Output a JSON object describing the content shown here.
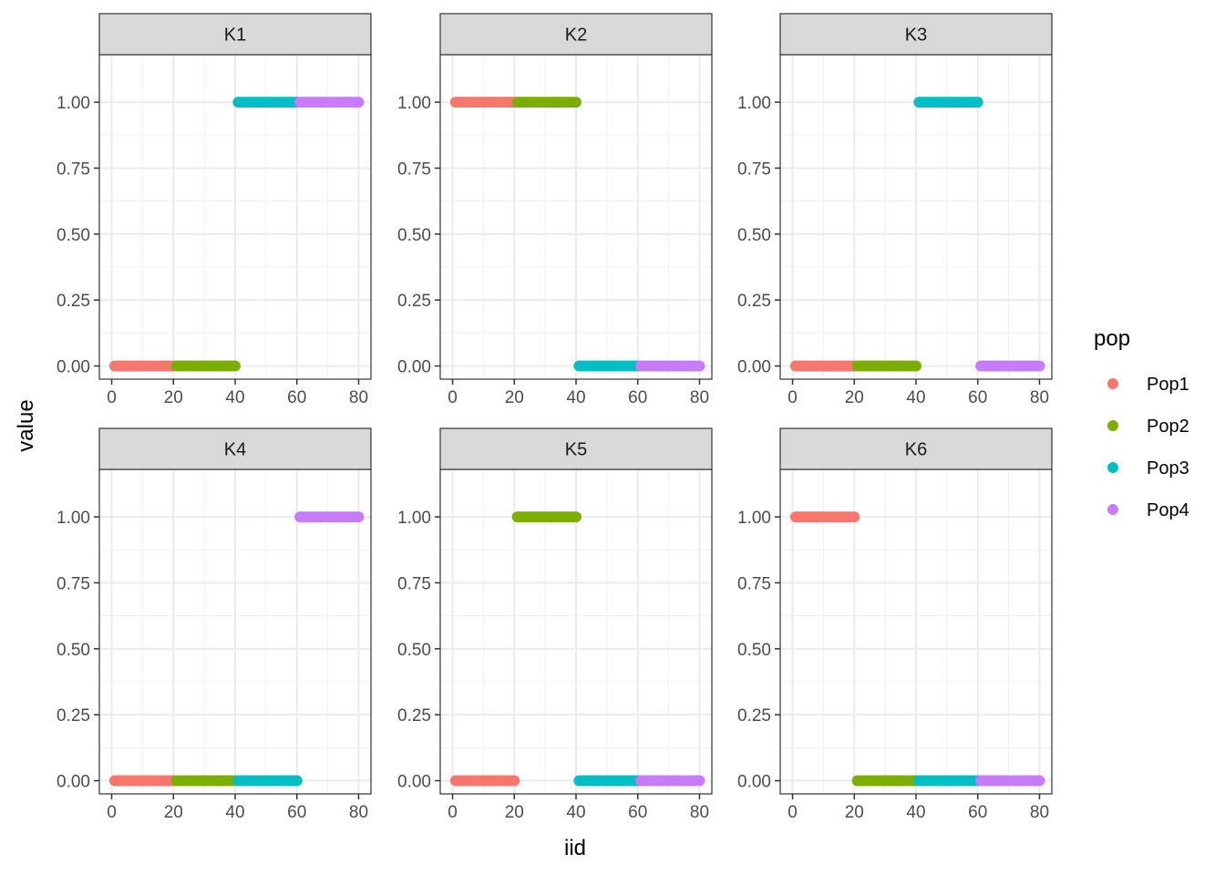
{
  "chart_data": {
    "type": "scatter",
    "xlabel": "iid",
    "ylabel": "value",
    "xlim": [
      0,
      80
    ],
    "ylim": [
      0,
      1
    ],
    "x_ticks": [
      0,
      20,
      40,
      60,
      80
    ],
    "y_ticks": [
      0,
      0.25,
      0.5,
      0.75,
      1.0
    ],
    "x_tick_labels": [
      "0",
      "20",
      "40",
      "60",
      "80"
    ],
    "y_tick_labels": [
      "0.00",
      "0.25",
      "0.50",
      "0.75",
      "1.00"
    ],
    "grid": true,
    "legend": {
      "title": "pop",
      "placement": "right",
      "entries": [
        {
          "name": "Pop1",
          "color": "#F8766D"
        },
        {
          "name": "Pop2",
          "color": "#7CAE00"
        },
        {
          "name": "Pop3",
          "color": "#00BFC4"
        },
        {
          "name": "Pop4",
          "color": "#C77CFF"
        }
      ]
    },
    "pop_ranges": {
      "Pop1": [
        1,
        20
      ],
      "Pop2": [
        21,
        40
      ],
      "Pop3": [
        41,
        60
      ],
      "Pop4": [
        61,
        80
      ]
    },
    "panels": [
      {
        "label": "K1",
        "values": {
          "Pop1": 0,
          "Pop2": 0,
          "Pop3": 1,
          "Pop4": 1
        }
      },
      {
        "label": "K2",
        "values": {
          "Pop1": 1,
          "Pop2": 1,
          "Pop3": 0,
          "Pop4": 0
        }
      },
      {
        "label": "K3",
        "values": {
          "Pop1": 0,
          "Pop2": 0,
          "Pop3": 1,
          "Pop4": 0
        }
      },
      {
        "label": "K4",
        "values": {
          "Pop1": 0,
          "Pop2": 0,
          "Pop3": 0,
          "Pop4": 1
        }
      },
      {
        "label": "K5",
        "values": {
          "Pop1": 0,
          "Pop2": 1,
          "Pop3": 0,
          "Pop4": 0
        }
      },
      {
        "label": "K6",
        "values": {
          "Pop1": 1,
          "Pop2": 0,
          "Pop3": 0,
          "Pop4": 0
        }
      }
    ]
  }
}
